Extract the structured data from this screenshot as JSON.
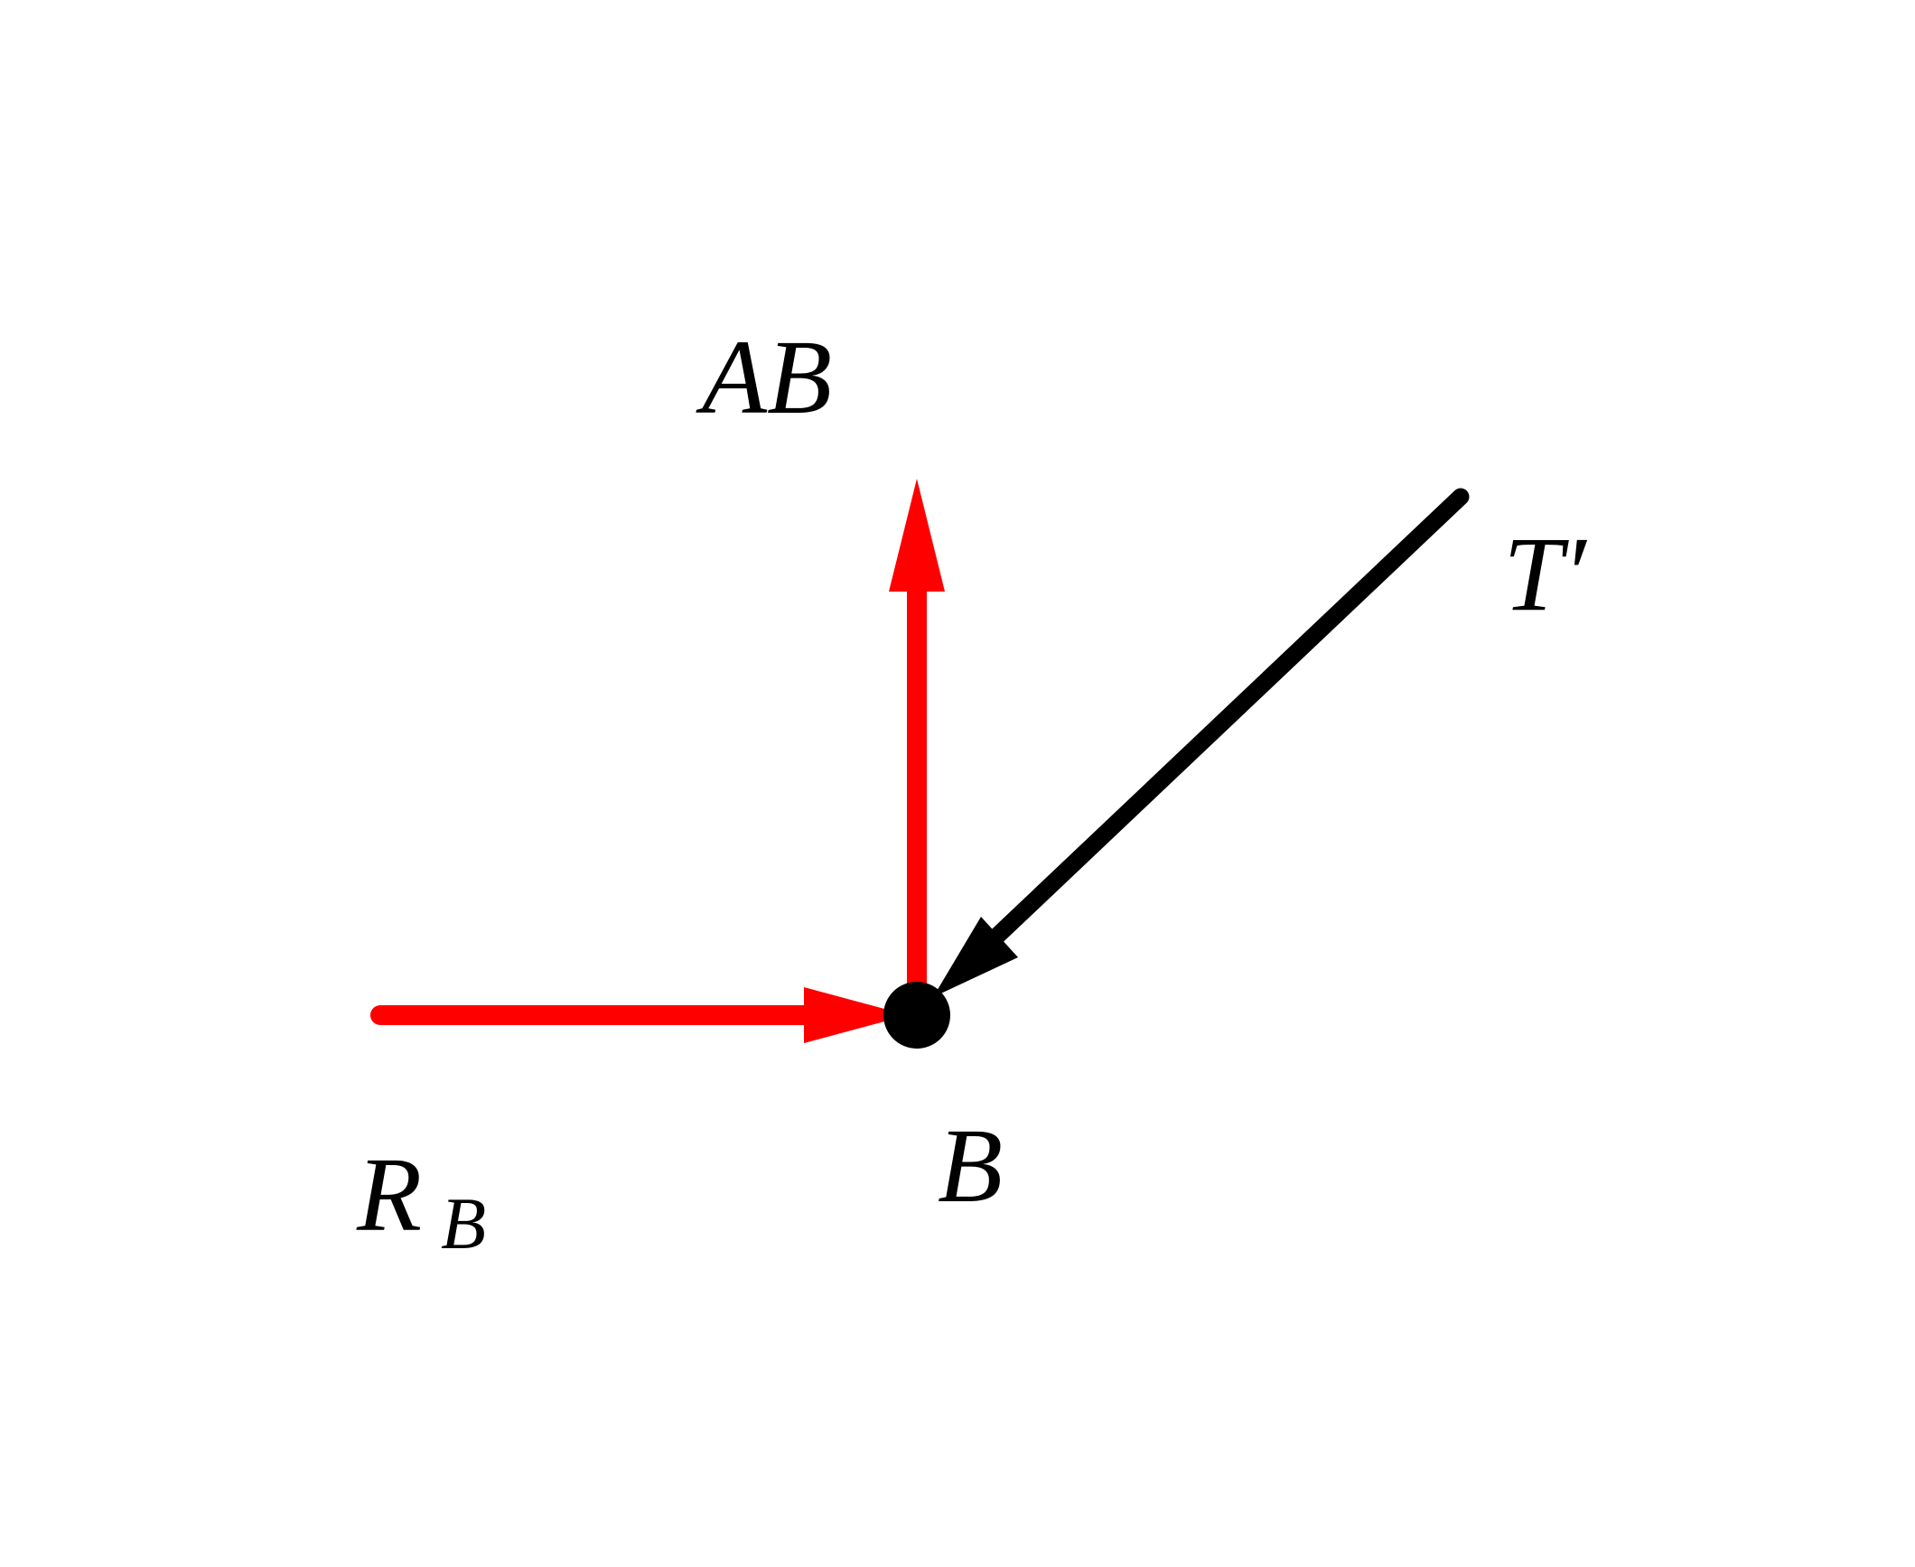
{
  "labels": {
    "top": "AB",
    "right": "T′",
    "point": "B",
    "left": {
      "main": "R",
      "subscript": "B"
    }
  }
}
